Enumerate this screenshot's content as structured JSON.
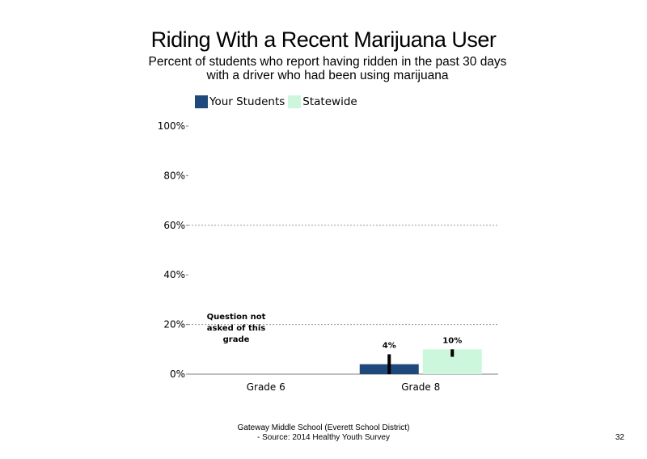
{
  "chart_data": {
    "type": "bar",
    "title": "Riding With a Recent Marijuana User",
    "subtitle": "Percent of students who report having ridden in the past 30 days with a driver who had been using marijuana",
    "categories": [
      "Grade 6",
      "Grade 8"
    ],
    "series": [
      {
        "name": "Your Students",
        "color": "#1f497d",
        "values": [
          null,
          4
        ],
        "labels": [
          "",
          "4%"
        ],
        "error": [
          null,
          [
            0,
            8
          ]
        ]
      },
      {
        "name": "Statewide",
        "color": "#ccf7dc",
        "values": [
          null,
          10
        ],
        "labels": [
          "",
          "10%"
        ],
        "error": [
          null,
          [
            7,
            10
          ]
        ]
      }
    ],
    "yticks": [
      "0%",
      "20%",
      "40%",
      "60%",
      "80%",
      "100%"
    ],
    "ylim": [
      0,
      100
    ],
    "grid": true,
    "legend_position": "top-left",
    "annotation": "Question not asked of this grade"
  },
  "footer": {
    "line1": "Gateway Middle School (Everett School District)",
    "line2": "- Source: 2014 Healthy Youth Survey"
  },
  "page_number": "32"
}
